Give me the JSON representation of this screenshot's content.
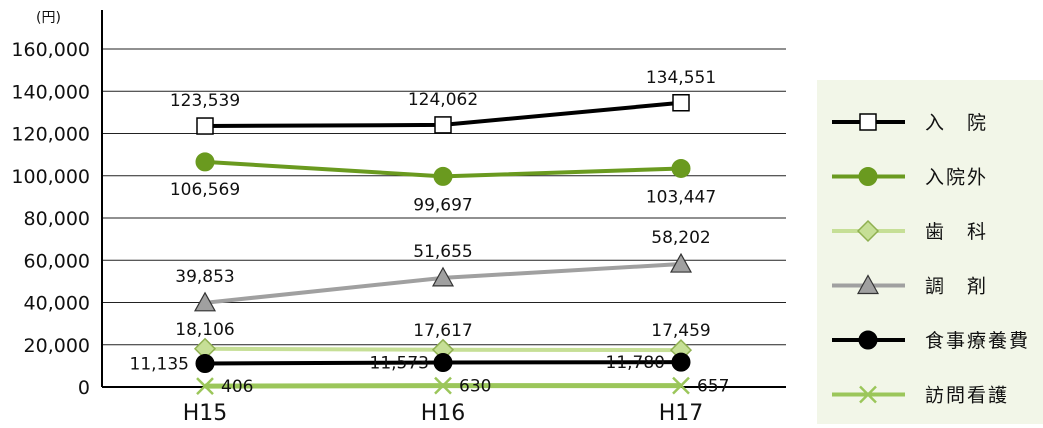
{
  "chart_data": {
    "type": "line",
    "unit_label": "(円)",
    "categories": [
      "H15",
      "H16",
      "H17"
    ],
    "ylim": [
      0,
      160000
    ],
    "yticks": [
      0,
      20000,
      40000,
      60000,
      80000,
      100000,
      120000,
      140000,
      160000
    ],
    "ytick_labels": [
      "0",
      "20,000",
      "40,000",
      "60,000",
      "80,000",
      "100,000",
      "120,000",
      "140,000",
      "160,000"
    ],
    "grid": "horizontal",
    "legend_position": "right",
    "series": [
      {
        "name": "入　院",
        "key": "nyuin",
        "values": [
          123539,
          124062,
          134551
        ],
        "labels": [
          "123,539",
          "124,062",
          "134,551"
        ],
        "color": "#000000",
        "marker": "square"
      },
      {
        "name": "入院外",
        "key": "nyuingai",
        "values": [
          106569,
          99697,
          103447
        ],
        "labels": [
          "106,569",
          "99,697",
          "103,447"
        ],
        "color": "#6a9a1f",
        "marker": "circle"
      },
      {
        "name": "歯　科",
        "key": "shika",
        "values": [
          18106,
          17617,
          17459
        ],
        "labels": [
          "18,106",
          "17,617",
          "17,459"
        ],
        "color": "#c6df96",
        "marker": "diamond"
      },
      {
        "name": "調　剤",
        "key": "chozai",
        "values": [
          39853,
          51655,
          58202
        ],
        "labels": [
          "39,853",
          "51,655",
          "58,202"
        ],
        "color": "#a0a0a0",
        "marker": "triangle"
      },
      {
        "name": "食事療養費",
        "key": "shokuji",
        "values": [
          11135,
          11573,
          11780
        ],
        "labels": [
          "11,135",
          "11,573",
          "11,780"
        ],
        "color": "#000000",
        "marker": "circle"
      },
      {
        "name": "訪問看護",
        "key": "houmon",
        "values": [
          406,
          630,
          657
        ],
        "labels": [
          "406",
          "630",
          "657"
        ],
        "color": "#9bc65a",
        "marker": "x"
      }
    ]
  }
}
